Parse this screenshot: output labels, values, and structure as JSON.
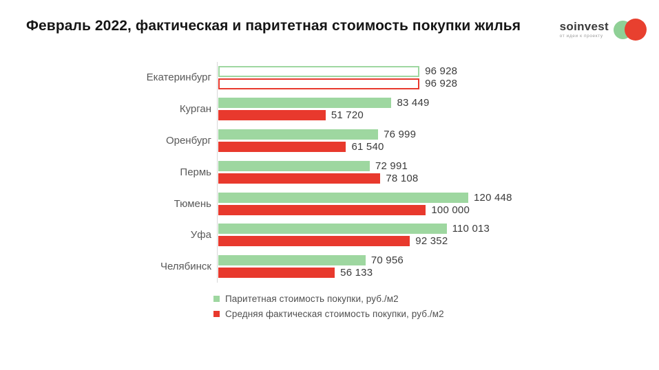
{
  "title": "Февраль 2022, фактическая и паритетная стоимость покупки жилья",
  "logo": {
    "name": "soinvest",
    "tagline": "от идеи к проекту",
    "circle_colors": [
      "#8fd096",
      "#e8402f"
    ]
  },
  "chart_data": {
    "type": "bar",
    "orientation": "horizontal",
    "title": "Февраль 2022, фактическая и паритетная стоимость покупки жилья",
    "unit": "руб./м2",
    "max_value": 120448,
    "xlim": [
      0,
      120448
    ],
    "grid": false,
    "legend_position": "bottom",
    "categories": [
      "Екатеринбург",
      "Курган",
      "Оренбург",
      "Пермь",
      "Тюмень",
      "Уфа",
      "Челябинск"
    ],
    "series": [
      {
        "name": "Паритетная стоимость покупки, руб./м2",
        "color": "#9ed7a0",
        "values": [
          96928,
          83449,
          76999,
          72991,
          120448,
          110013,
          70956
        ],
        "labels": [
          "96 928",
          "83 449",
          "76 999",
          "72 991",
          "120 448",
          "110 013",
          "70 956"
        ]
      },
      {
        "name": "Средняя фактическая стоимость покупки, руб./м2",
        "color": "#e8392d",
        "values": [
          96928,
          51720,
          61540,
          78108,
          100000,
          92352,
          56133
        ],
        "labels": [
          "96 928",
          "51 720",
          "61 540",
          "78 108",
          "100 000",
          "92 352",
          "56 133"
        ]
      }
    ],
    "highlight_category": "Екатеринбург",
    "highlight_style": "outlined hollow bars"
  },
  "legend": [
    {
      "label": "Паритетная стоимость покупки, руб./м2",
      "color": "#9ed7a0"
    },
    {
      "label": "Средняя фактическая стоимость покупки, руб./м2",
      "color": "#e8392d"
    }
  ],
  "colors": {
    "parity_green": "#9ed7a0",
    "actual_red": "#e8392d",
    "axis": "#d8d8d8",
    "background": "#ffffff",
    "title_text": "#161616",
    "category_text": "#595959",
    "value_text": "#3a3a3a"
  }
}
